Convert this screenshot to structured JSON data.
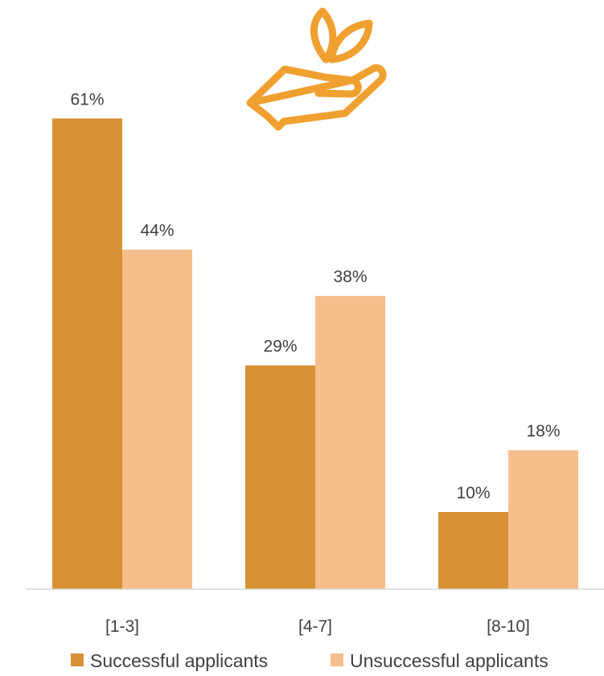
{
  "chart_data": {
    "type": "bar",
    "title": "",
    "xlabel": "",
    "ylabel": "",
    "ylim": [
      0,
      65
    ],
    "grid": false,
    "legend_position": "bottom",
    "categories": [
      "[1-3]",
      "[4-7]",
      "[8-10]"
    ],
    "series": [
      {
        "name": "Successful applicants",
        "color": "#D69132",
        "values": [
          61,
          29,
          10
        ],
        "labels": [
          "61%",
          "29%",
          "10%"
        ]
      },
      {
        "name": "Unsuccessful applicants",
        "color": "#F5BE8B",
        "values": [
          44,
          38,
          18
        ],
        "labels": [
          "44%",
          "38%",
          "18%"
        ]
      }
    ]
  },
  "decoration": {
    "icon": "hand-plant-icon",
    "icon_color": "#F0A030"
  },
  "axis_color": "#D9D9D9"
}
